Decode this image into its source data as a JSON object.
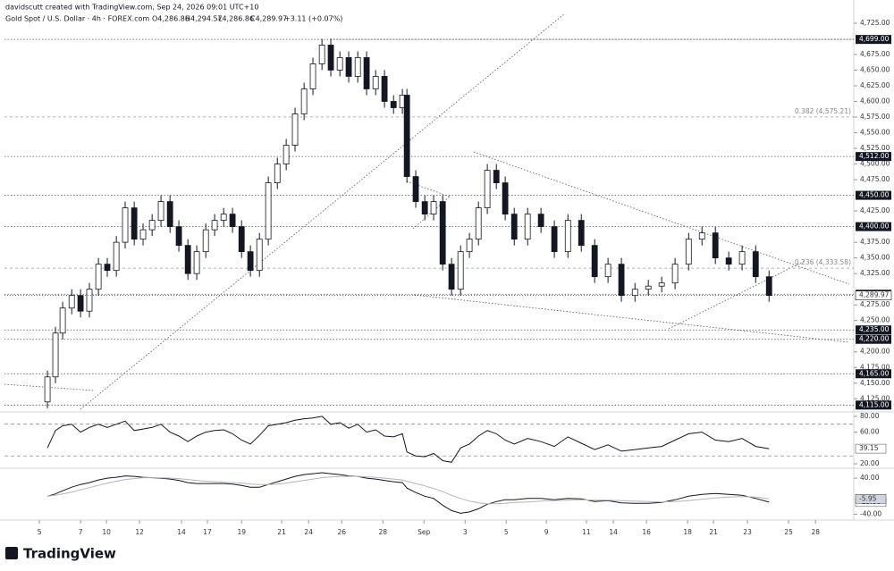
{
  "header": {
    "attribution": "davidscutt created with TradingView.com, Sep 24, 2026 09:01 UTC+10",
    "symbol": "Gold Spot / U.S. Dollar · 4h · FOREX.com",
    "ohlc": [
      "O4,286.86",
      "H4,294.57",
      "L4,286.86",
      "C4,289.97",
      "+3.11 (+0.07%)"
    ]
  },
  "chart_data": [
    {
      "type": "candlestick",
      "x": [
        0.39,
        0.78,
        1.13,
        1.57,
        2,
        2.43,
        2.87,
        3.3,
        3.74,
        4.17,
        4.61,
        5.04,
        5.48,
        5.91,
        6.35,
        6.78,
        7.22,
        7.65,
        8.09,
        8.52,
        8.96,
        9.39,
        9.83,
        10.26,
        10.7,
        11.13,
        11.57,
        12,
        12.43,
        12.87,
        13.3,
        13.74,
        14.17,
        14.61,
        15.04,
        15.48,
        15.91,
        16.35,
        16.78,
        17.22,
        17.65,
        17.87,
        18.3,
        18.74,
        19.17,
        19.61,
        20.04,
        20.48,
        20.91,
        21.35,
        21.78,
        22.22,
        22.65,
        23.09,
        23.74,
        24.39,
        25.04,
        25.7,
        26.35,
        27,
        27.65,
        28.3,
        28.96,
        29.61,
        30.26,
        30.91,
        31.57,
        32.22,
        32.87,
        33.52,
        34.17,
        34.83,
        35.48
      ],
      "open": [
        4120,
        4160,
        4230,
        4270,
        4290,
        4265,
        4300,
        4340,
        4330,
        4375,
        4430,
        4380,
        4395,
        4410,
        4440,
        4400,
        4370,
        4325,
        4360,
        4395,
        4410,
        4420,
        4400,
        4360,
        4330,
        4380,
        4470,
        4500,
        4530,
        4580,
        4620,
        4660,
        4690,
        4650,
        4670,
        4640,
        4670,
        4620,
        4640,
        4600,
        4590,
        4610,
        4480,
        4440,
        4420,
        4440,
        4340,
        4300,
        4360,
        4380,
        4430,
        4490,
        4470,
        4420,
        4380,
        4420,
        4400,
        4360,
        4410,
        4370,
        4320,
        4340,
        4290,
        4300,
        4305,
        4310,
        4340,
        4380,
        4390,
        4350,
        4340,
        4360,
        4320
      ],
      "close": [
        4160,
        4230,
        4270,
        4290,
        4265,
        4300,
        4340,
        4330,
        4375,
        4430,
        4380,
        4395,
        4410,
        4440,
        4400,
        4370,
        4325,
        4360,
        4395,
        4410,
        4420,
        4400,
        4360,
        4330,
        4380,
        4470,
        4500,
        4530,
        4580,
        4620,
        4660,
        4690,
        4650,
        4670,
        4640,
        4670,
        4620,
        4640,
        4600,
        4590,
        4610,
        4480,
        4440,
        4420,
        4440,
        4340,
        4300,
        4360,
        4380,
        4430,
        4490,
        4470,
        4420,
        4380,
        4420,
        4400,
        4360,
        4410,
        4370,
        4320,
        4340,
        4290,
        4300,
        4305,
        4310,
        4340,
        4380,
        4390,
        4350,
        4340,
        4360,
        4320,
        4290
      ],
      "high": [
        4170,
        4240,
        4280,
        4300,
        4300,
        4310,
        4350,
        4350,
        4385,
        4440,
        4440,
        4405,
        4420,
        4450,
        4450,
        4410,
        4380,
        4370,
        4405,
        4420,
        4430,
        4430,
        4410,
        4370,
        4390,
        4480,
        4510,
        4540,
        4590,
        4630,
        4670,
        4700,
        4700,
        4680,
        4680,
        4680,
        4680,
        4650,
        4650,
        4610,
        4620,
        4620,
        4490,
        4450,
        4450,
        4450,
        4350,
        4370,
        4390,
        4440,
        4500,
        4500,
        4480,
        4430,
        4430,
        4430,
        4410,
        4420,
        4420,
        4380,
        4350,
        4350,
        4310,
        4315,
        4320,
        4350,
        4390,
        4400,
        4400,
        4360,
        4370,
        4370,
        4330
      ],
      "low": [
        4110,
        4150,
        4220,
        4260,
        4255,
        4255,
        4290,
        4320,
        4320,
        4365,
        4370,
        4370,
        4385,
        4400,
        4390,
        4360,
        4315,
        4315,
        4350,
        4385,
        4400,
        4390,
        4350,
        4320,
        4320,
        4370,
        4460,
        4490,
        4520,
        4570,
        4610,
        4650,
        4640,
        4640,
        4630,
        4630,
        4610,
        4610,
        4590,
        4580,
        4580,
        4470,
        4430,
        4410,
        4410,
        4330,
        4290,
        4290,
        4350,
        4370,
        4420,
        4460,
        4410,
        4370,
        4370,
        4390,
        4350,
        4350,
        4360,
        4310,
        4310,
        4280,
        4280,
        4290,
        4295,
        4300,
        4330,
        4370,
        4340,
        4330,
        4330,
        4310,
        4280
      ],
      "xlim": [
        -1.7,
        39.6
      ],
      "ylim": [
        4104,
        4762
      ],
      "xticks": [
        {
          "value": 0,
          "label": "5"
        },
        {
          "value": 2,
          "label": "7"
        },
        {
          "value": 3.26,
          "label": "10"
        },
        {
          "value": 4.87,
          "label": "12"
        },
        {
          "value": 6.91,
          "label": "14"
        },
        {
          "value": 8.17,
          "label": "17"
        },
        {
          "value": 9.83,
          "label": "19"
        },
        {
          "value": 11.78,
          "label": "21"
        },
        {
          "value": 13.09,
          "label": "24"
        },
        {
          "value": 14.7,
          "label": "26"
        },
        {
          "value": 16.7,
          "label": "28"
        },
        {
          "value": 18.7,
          "label": "Sep"
        },
        {
          "value": 20.7,
          "label": "3"
        },
        {
          "value": 22.7,
          "label": "5"
        },
        {
          "value": 24.65,
          "label": "9"
        },
        {
          "value": 26.6,
          "label": "11"
        },
        {
          "value": 27.91,
          "label": "14"
        },
        {
          "value": 29.52,
          "label": "16"
        },
        {
          "value": 31.52,
          "label": "18"
        },
        {
          "value": 32.78,
          "label": "21"
        },
        {
          "value": 34.43,
          "label": "23"
        },
        {
          "value": 36.43,
          "label": "25"
        },
        {
          "value": 37.74,
          "label": "28"
        }
      ],
      "yticks": [
        {
          "value": 4125,
          "label": "4,125.00"
        },
        {
          "value": 4150,
          "label": "4,150.00"
        },
        {
          "value": 4175,
          "label": "4,175.00"
        },
        {
          "value": 4200,
          "label": "4,200.00"
        },
        {
          "value": 4250,
          "label": "4,250.00"
        },
        {
          "value": 4275,
          "label": "4,275.00"
        },
        {
          "value": 4325,
          "label": "4,325.00"
        },
        {
          "value": 4350,
          "label": "4,350.00"
        },
        {
          "value": 4375,
          "label": "4,375.00"
        },
        {
          "value": 4425,
          "label": "4,425.00"
        },
        {
          "value": 4475,
          "label": "4,475.00"
        },
        {
          "value": 4500,
          "label": "4,500.00"
        },
        {
          "value": 4525,
          "label": "4,525.00"
        },
        {
          "value": 4550,
          "label": "4,550.00"
        },
        {
          "value": 4575,
          "label": "4,575.00"
        },
        {
          "value": 4600,
          "label": "4,600.00"
        },
        {
          "value": 4625,
          "label": "4,625.00"
        },
        {
          "value": 4650,
          "label": "4,650.00"
        },
        {
          "value": 4675,
          "label": "4,675.00"
        },
        {
          "value": 4725,
          "label": "4,725.00"
        }
      ],
      "levels": [
        {
          "value": 4699,
          "label": "4,699.00"
        },
        {
          "value": 4512,
          "label": "4,512.00"
        },
        {
          "value": 4450,
          "label": "4,450.00"
        },
        {
          "value": 4400,
          "label": "4,400.00"
        },
        {
          "value": 4292,
          "label": "4,292.00"
        },
        {
          "value": 4235,
          "label": "4,235.00"
        },
        {
          "value": 4220,
          "label": "4,220.00"
        },
        {
          "value": 4165,
          "label": "4,165.00"
        },
        {
          "value": 4115,
          "label": "4,115.00"
        }
      ],
      "fibs": [
        {
          "value": 4575.21,
          "label": "0.382 (4,575.21)"
        },
        {
          "value": 4333.58,
          "label": "0.236 (4,333.58)"
        }
      ],
      "current": {
        "value": 4289.97,
        "label": "4,289.97"
      }
    },
    {
      "type": "line",
      "ylim": [
        14.4,
        84.4
      ],
      "yticks": [
        {
          "value": 80,
          "label": "80.00"
        },
        {
          "value": 60,
          "label": "60.00"
        },
        {
          "value": 20,
          "label": "20.00"
        }
      ],
      "bands": [
        70,
        30
      ],
      "series": [
        {
          "color": "#131722",
          "last_label": "39.15",
          "values": [
            40,
            62,
            68,
            70,
            60,
            66,
            70,
            66,
            70,
            74,
            62,
            64,
            66,
            70,
            60,
            55,
            48,
            55,
            60,
            62,
            63,
            58,
            50,
            45,
            56,
            68,
            70,
            72,
            75,
            77,
            78,
            80,
            70,
            72,
            65,
            70,
            60,
            63,
            55,
            54,
            58,
            35,
            30,
            29,
            33,
            24,
            22,
            40,
            45,
            55,
            62,
            58,
            50,
            45,
            52,
            48,
            42,
            54,
            46,
            38,
            44,
            36,
            38,
            40,
            42,
            50,
            58,
            60,
            50,
            48,
            52,
            42,
            39.15
          ]
        }
      ]
    },
    {
      "type": "line",
      "ylim": [
        -53,
        62
      ],
      "yticks": [
        {
          "value": 40,
          "label": "40.00"
        },
        {
          "value": -40,
          "label": "-40.00"
        }
      ],
      "series": [
        {
          "color": "#131722",
          "last_label": "-13.06",
          "values": [
            0,
            5,
            12,
            20,
            26,
            30,
            36,
            40,
            42,
            45,
            44,
            42,
            41,
            40,
            38,
            35,
            30,
            28,
            28,
            28,
            28,
            27,
            24,
            20,
            20,
            26,
            32,
            38,
            44,
            48,
            50,
            52,
            50,
            48,
            45,
            44,
            40,
            38,
            35,
            32,
            30,
            18,
            8,
            0,
            -5,
            -20,
            -32,
            -38,
            -35,
            -28,
            -18,
            -12,
            -8,
            -8,
            -5,
            -5,
            -8,
            -5,
            -6,
            -12,
            -10,
            -15,
            -16,
            -16,
            -14,
            -8,
            0,
            4,
            6,
            4,
            2,
            -5,
            -13.06
          ]
        },
        {
          "color": "#b2b5be",
          "last_label": "-5.95",
          "values": [
            0,
            2,
            5,
            9,
            14,
            19,
            24,
            29,
            33,
            37,
            39,
            41,
            41,
            41,
            40,
            39,
            37,
            35,
            33,
            32,
            31,
            30,
            29,
            27,
            26,
            26,
            27,
            29,
            32,
            35,
            38,
            41,
            43,
            44,
            44,
            44,
            43,
            42,
            40,
            38,
            36,
            33,
            28,
            23,
            17,
            10,
            2,
            -5,
            -11,
            -15,
            -17,
            -17,
            -16,
            -14,
            -13,
            -11,
            -10,
            -9,
            -8,
            -9,
            -9,
            -10,
            -11,
            -12,
            -13,
            -12,
            -10,
            -7,
            -4,
            -2,
            -1,
            -2,
            -5.95
          ]
        }
      ]
    }
  ],
  "footer": {
    "brand": "TradingView"
  }
}
